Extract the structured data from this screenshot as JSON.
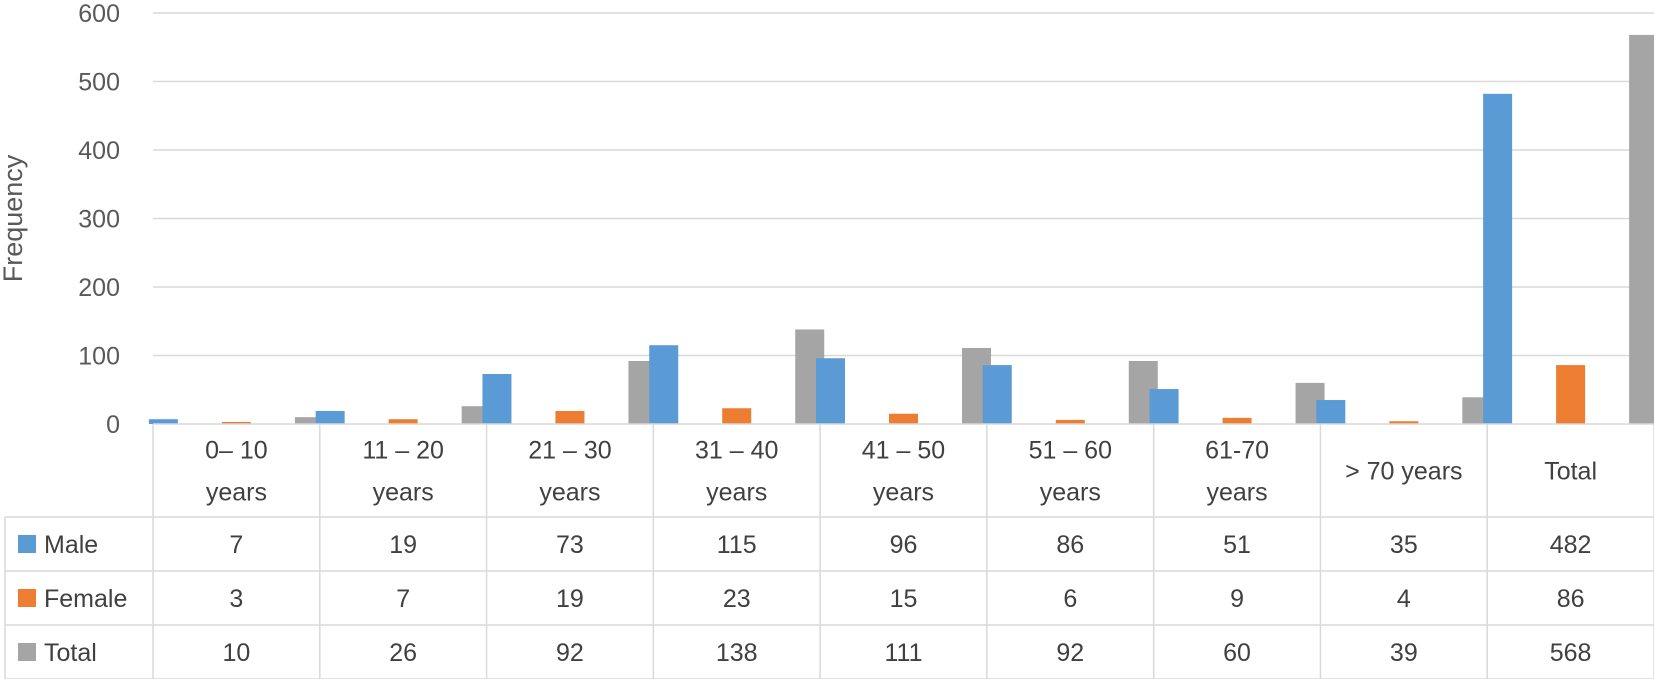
{
  "chart_data": {
    "type": "bar",
    "ylabel": "Frequency",
    "ylim": [
      0,
      600
    ],
    "yticks": [
      "0",
      "100",
      "200",
      "300",
      "400",
      "500",
      "600"
    ],
    "ytick_values": [
      0,
      100,
      200,
      300,
      400,
      500,
      600
    ],
    "categories": [
      [
        "0– 10",
        "years"
      ],
      [
        "11 – 20",
        "years"
      ],
      [
        "21 – 30",
        "years"
      ],
      [
        "31 – 40",
        "years"
      ],
      [
        "41 – 50",
        "years"
      ],
      [
        "51 – 60",
        "years"
      ],
      [
        "61-70",
        "years"
      ],
      [
        "> 70 years"
      ],
      [
        "Total"
      ]
    ],
    "series": [
      {
        "name": "Male",
        "color": "#5b9bd5",
        "values": [
          7,
          19,
          73,
          115,
          96,
          86,
          51,
          35,
          482
        ]
      },
      {
        "name": "Female",
        "color": "#ed7d31",
        "values": [
          3,
          7,
          19,
          23,
          15,
          6,
          9,
          4,
          86
        ]
      },
      {
        "name": "Total",
        "color": "#a5a5a5",
        "values": [
          10,
          26,
          92,
          138,
          111,
          92,
          60,
          39,
          568
        ]
      }
    ],
    "grid": true,
    "legend": "data-table"
  }
}
